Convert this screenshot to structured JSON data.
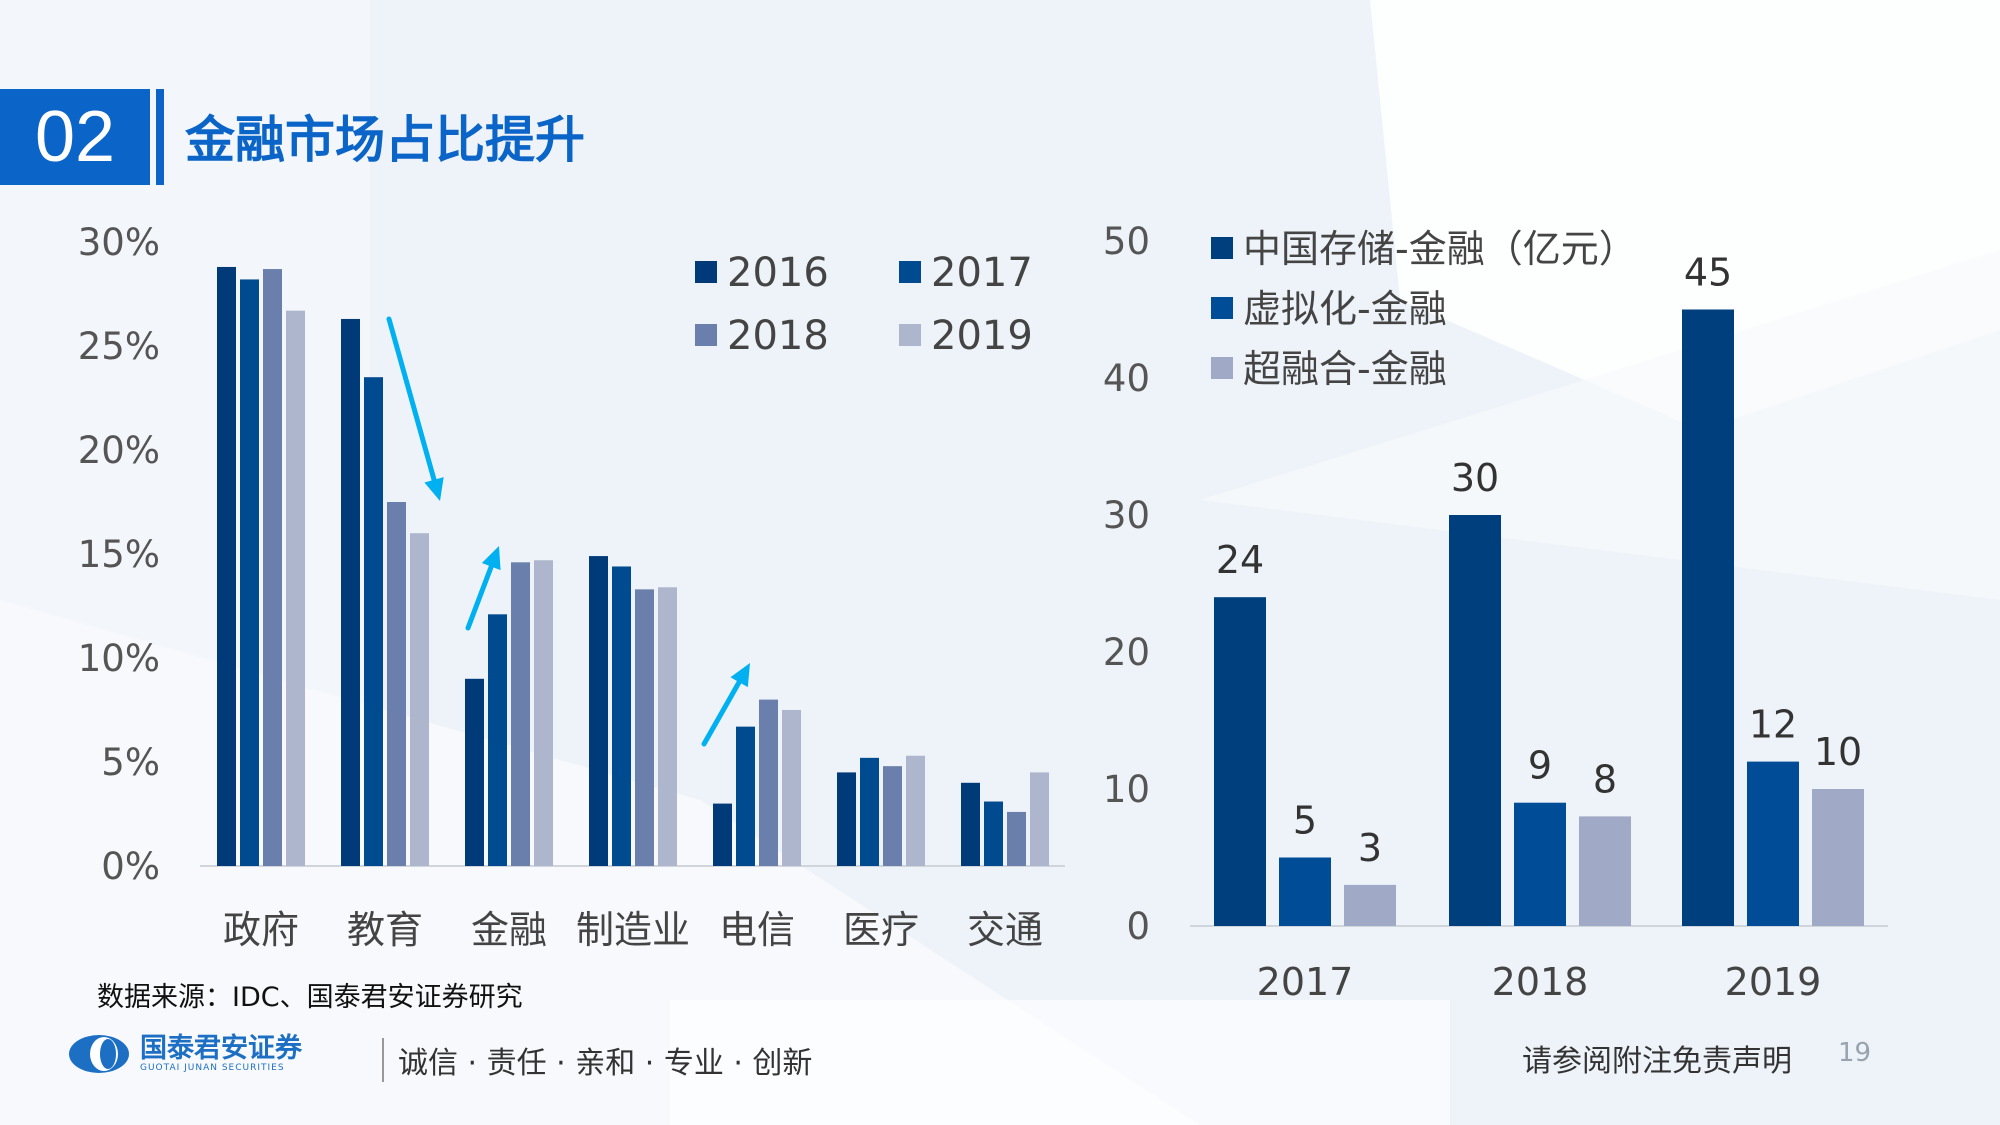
{
  "header": {
    "section_number": "02",
    "title": "金融市场占比提升"
  },
  "chart_data": [
    {
      "type": "bar",
      "categories": [
        "政府",
        "教育",
        "金融",
        "制造业",
        "电信",
        "医疗",
        "交通"
      ],
      "series": [
        {
          "name": "2016",
          "color": "#003a78",
          "values": [
            28.8,
            26.3,
            9.0,
            14.9,
            3.0,
            4.5,
            4.0
          ]
        },
        {
          "name": "2017",
          "color": "#004a8f",
          "values": [
            28.2,
            23.5,
            12.1,
            14.4,
            6.7,
            5.2,
            3.1
          ]
        },
        {
          "name": "2018",
          "color": "#6a7fab",
          "values": [
            28.7,
            17.5,
            14.6,
            13.3,
            8.0,
            4.8,
            2.6
          ]
        },
        {
          "name": "2019",
          "color": "#adb6cc",
          "values": [
            26.7,
            16.0,
            14.7,
            13.4,
            7.5,
            5.3,
            4.5
          ]
        }
      ],
      "ylim": [
        0,
        30
      ],
      "yticks": [
        "0%",
        "5%",
        "10%",
        "15%",
        "20%",
        "25%",
        "30%"
      ],
      "legend": "top-right",
      "annotations": [
        {
          "type": "arrow",
          "direction": "down",
          "category": "教育",
          "color": "#00b0f0"
        },
        {
          "type": "arrow",
          "direction": "up",
          "category": "金融",
          "color": "#00b0f0"
        },
        {
          "type": "arrow",
          "direction": "up",
          "category": "电信",
          "color": "#00b0f0"
        }
      ]
    },
    {
      "type": "bar",
      "categories": [
        "2017",
        "2018",
        "2019"
      ],
      "series": [
        {
          "name": "中国存储-金融（亿元）",
          "color": "#003f7d",
          "values": [
            24,
            30,
            45
          ],
          "labels": [
            "24",
            "30",
            "45"
          ]
        },
        {
          "name": "虚拟化-金融",
          "color": "#004c97",
          "values": [
            5,
            9,
            12
          ],
          "labels": [
            "5",
            "9",
            "12"
          ]
        },
        {
          "name": "超融合-金融",
          "color": "#a0a9c6",
          "values": [
            3,
            8,
            10
          ],
          "labels": [
            "3",
            "8",
            "10"
          ]
        }
      ],
      "ylim": [
        0,
        50
      ],
      "yticks": [
        "0",
        "10",
        "20",
        "30",
        "40",
        "50"
      ],
      "legend": "top-left"
    }
  ],
  "footer": {
    "source": "数据来源：IDC、国泰君安证券研究",
    "logo_cn": "国泰君安证券",
    "logo_en": "GUOTAI JUNAN SECURITIES",
    "slogan": "诚信 · 责任 · 亲和 · 专业 · 创新",
    "disclaimer": "请参阅附注免责声明",
    "page_number": "19"
  }
}
